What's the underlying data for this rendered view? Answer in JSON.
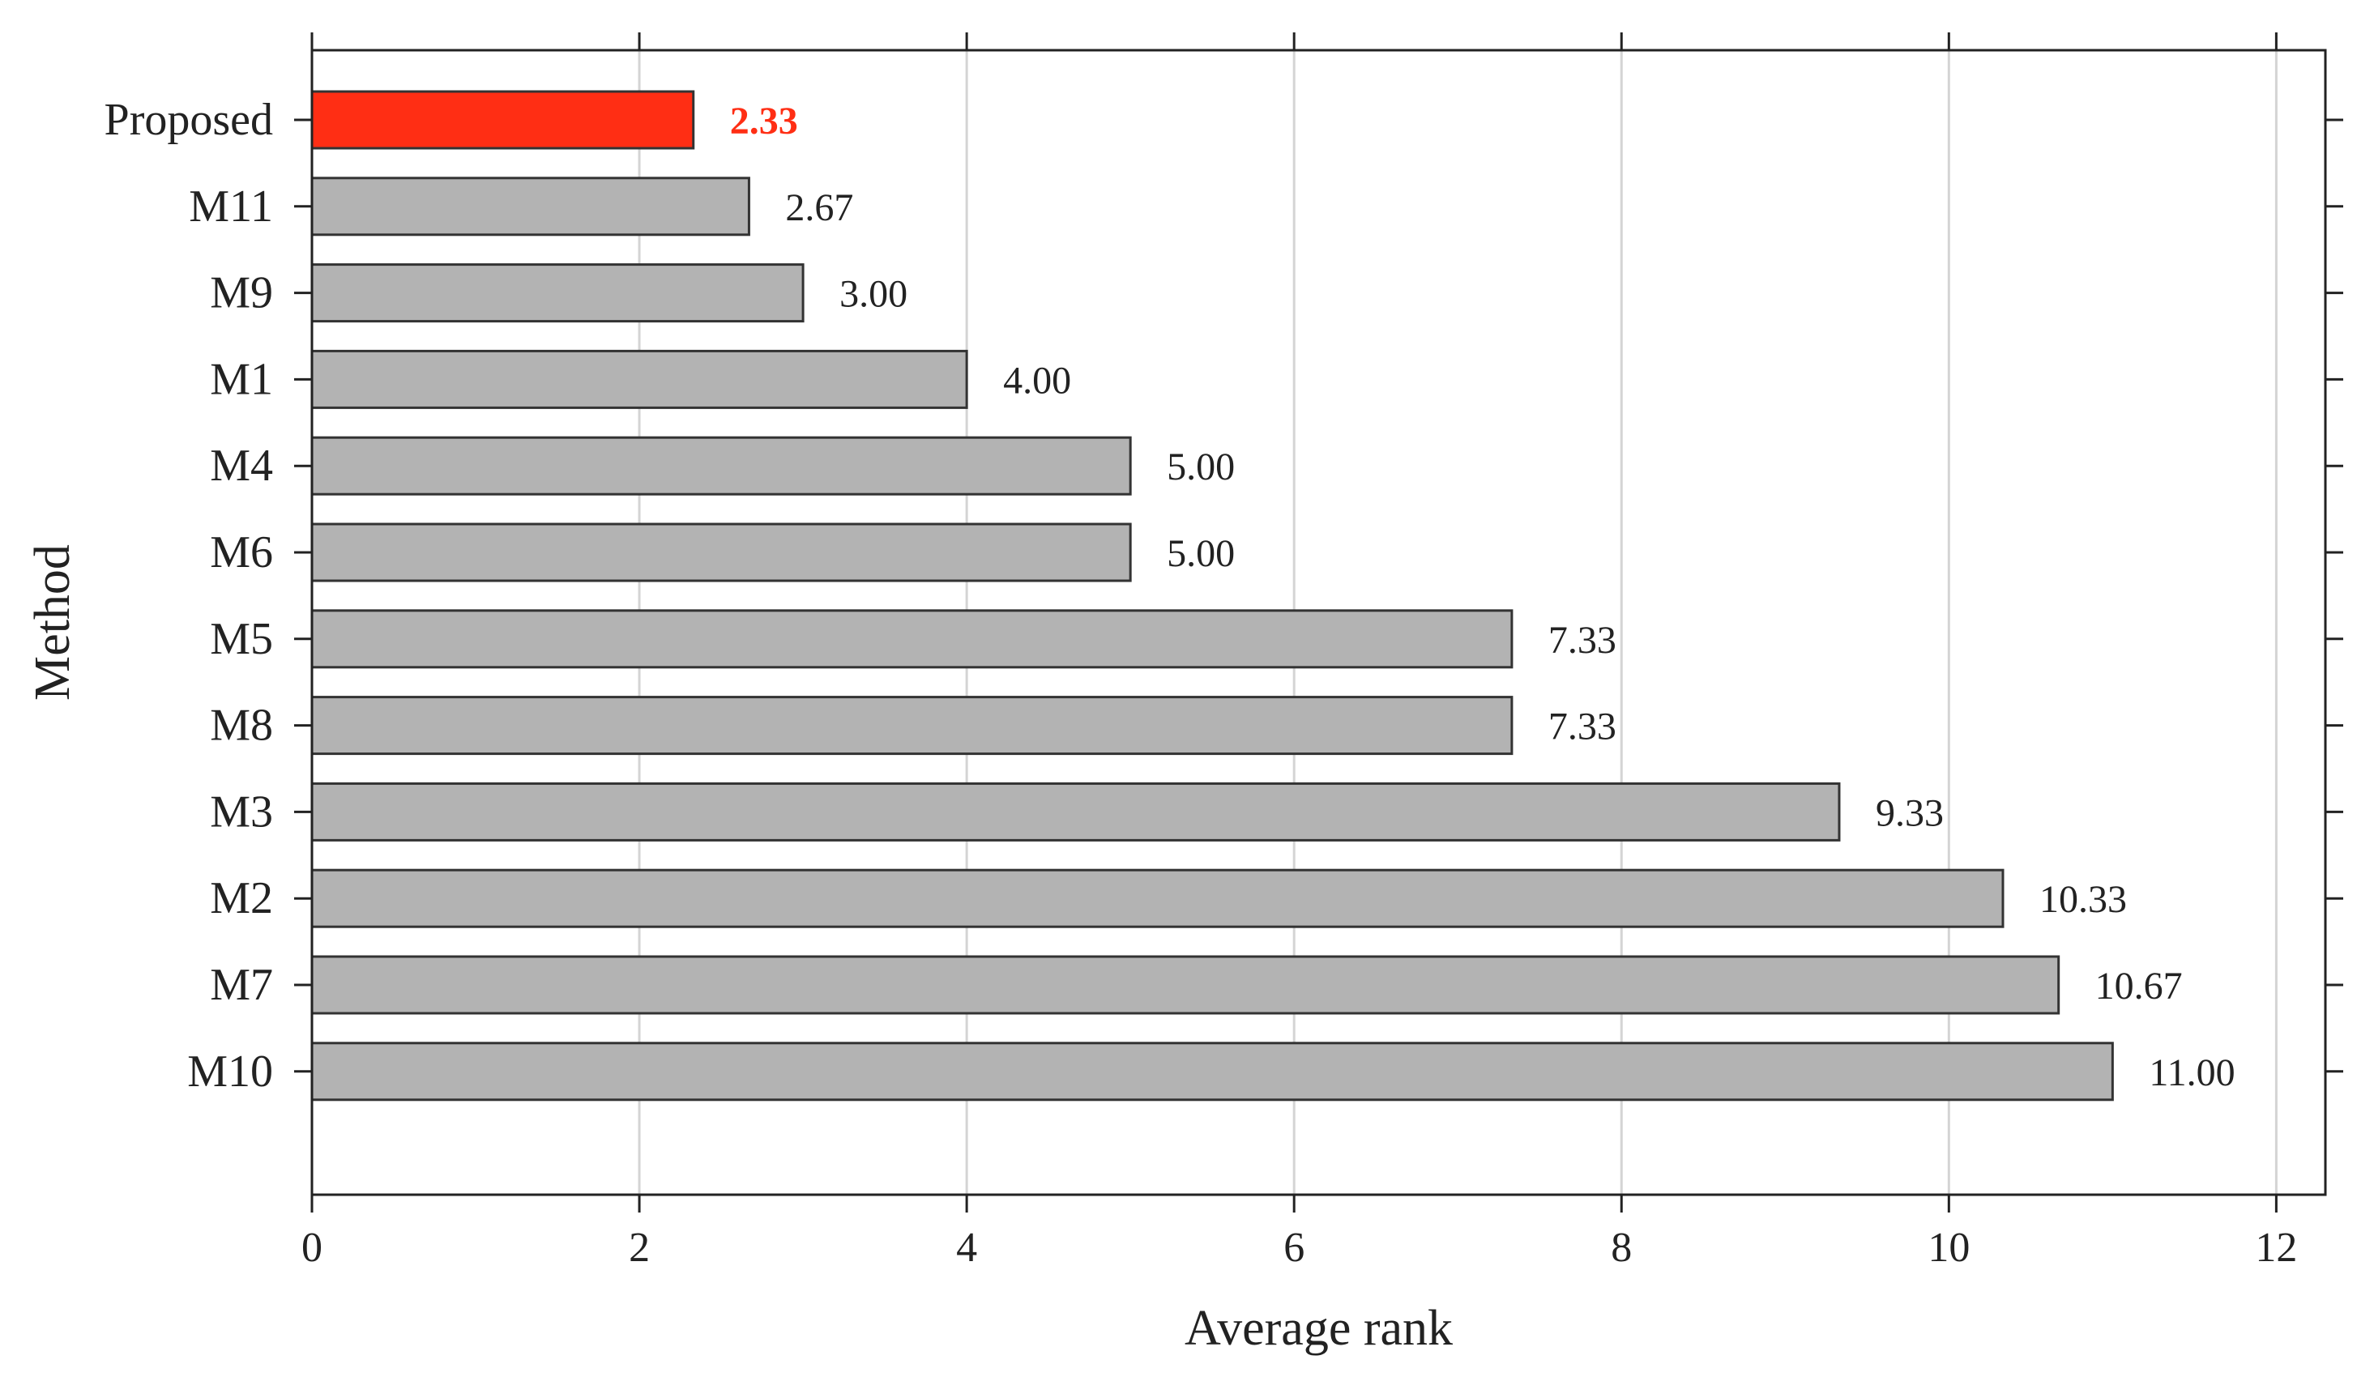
{
  "chart_data": {
    "type": "bar",
    "orientation": "horizontal",
    "categories": [
      "Proposed",
      "M11",
      "M9",
      "M1",
      "M4",
      "M6",
      "M5",
      "M8",
      "M3",
      "M2",
      "M7",
      "M10"
    ],
    "values": [
      2.33,
      2.67,
      3.0,
      4.0,
      5.0,
      5.0,
      7.33,
      7.33,
      9.33,
      10.33,
      10.67,
      11.0
    ],
    "value_labels": [
      "2.33",
      "2.67",
      "3.00",
      "4.00",
      "5.00",
      "5.00",
      "7.33",
      "7.33",
      "9.33",
      "10.33",
      "10.67",
      "11.00"
    ],
    "highlight_index": 0,
    "xlabel": "Average rank",
    "ylabel": "Method",
    "xlim": [
      0,
      12.3
    ],
    "xticks": [
      "0",
      "2",
      "4",
      "6",
      "8",
      "10",
      "12"
    ],
    "xtick_values": [
      0,
      2,
      4,
      6,
      8,
      10,
      12
    ],
    "grid": "vertical",
    "colors": {
      "bar": "#b3b3b3",
      "highlight": "#ff2e14",
      "edge": "#333333",
      "grid": "#d4d4d4",
      "axis": "#222222",
      "text": "#222222",
      "highlight_text": "#ff2e14"
    }
  }
}
